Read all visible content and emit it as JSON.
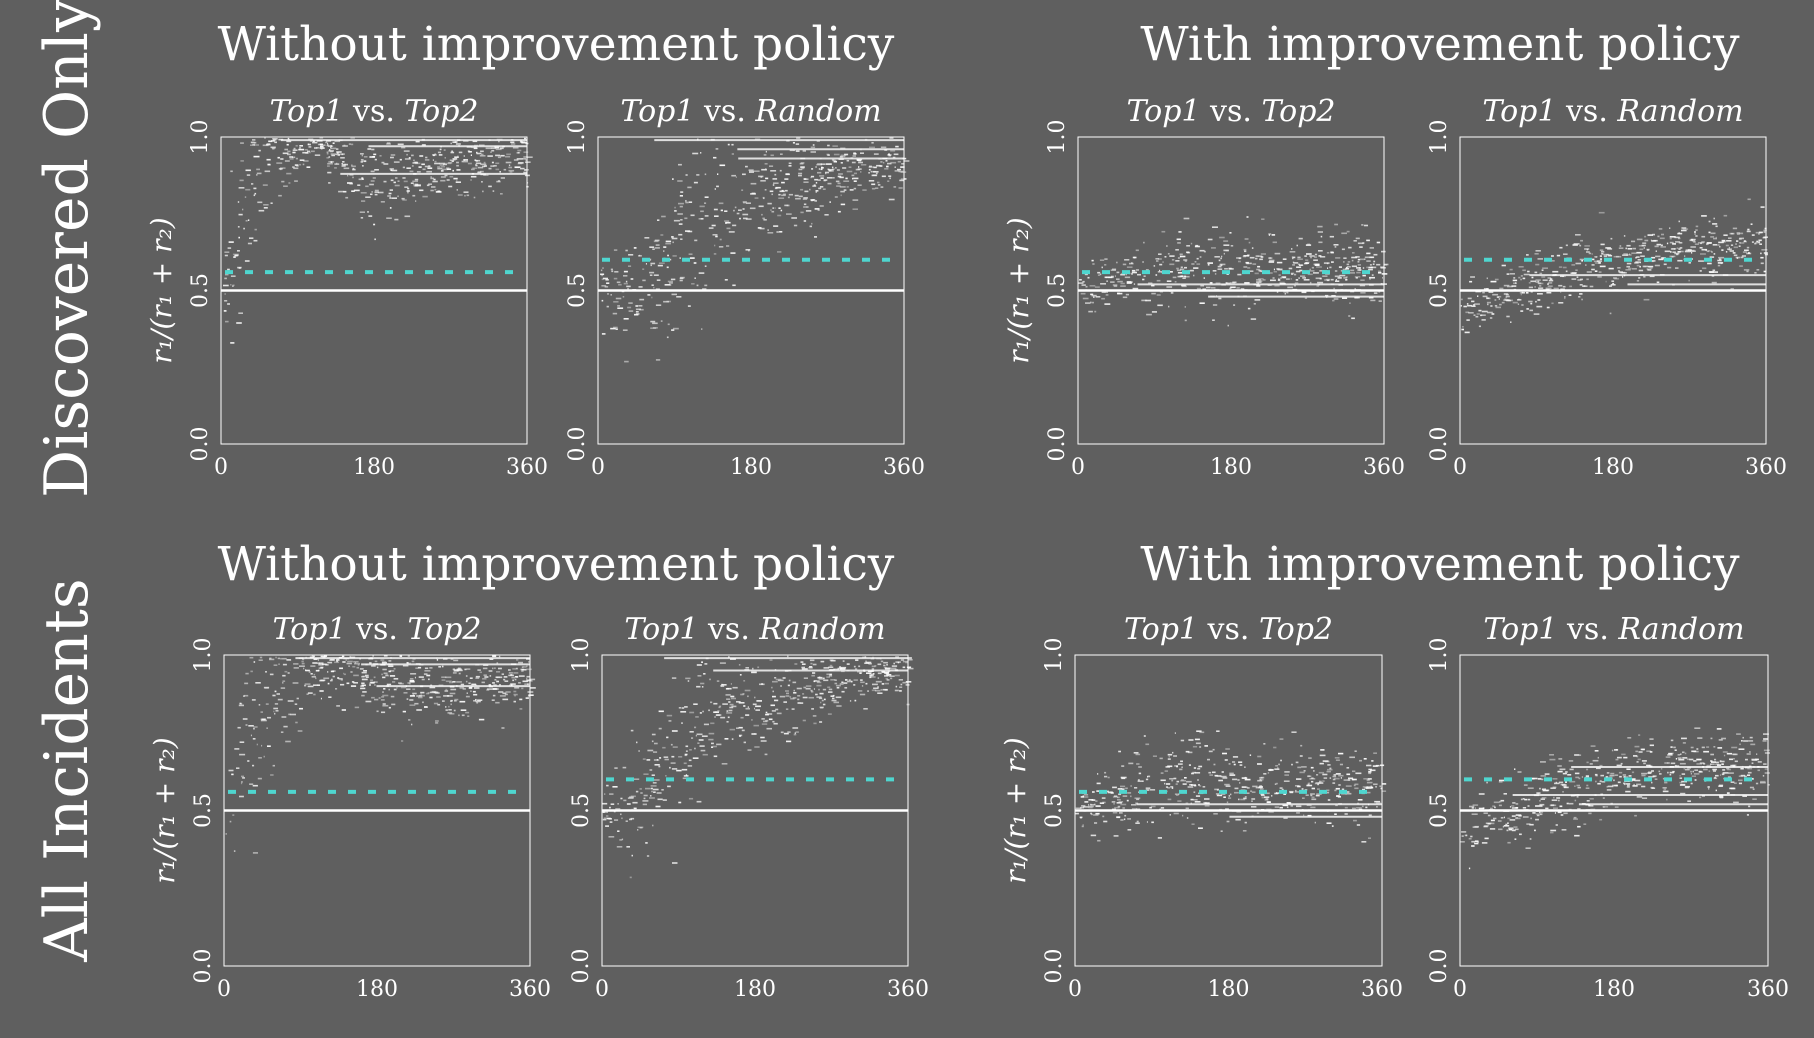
{
  "figure": {
    "rows": [
      {
        "label": "Discovered Only"
      },
      {
        "label": "All Incidents"
      }
    ],
    "group_titles": [
      "Without improvement policy",
      "With improvement policy"
    ],
    "panel_titles": [
      {
        "left": "Top1",
        "vs": " vs. ",
        "right": "Top2"
      },
      {
        "left": "Top1",
        "vs": " vs. ",
        "right": "Random"
      }
    ],
    "ylabel": "r₁/(r₁ + r₂)",
    "x_ticks": [
      "0",
      "180",
      "360"
    ],
    "y_ticks": [
      "0.0",
      "0.5",
      "1.0"
    ]
  },
  "chart_data": [
    {
      "type": "scatter",
      "row": "Discovered Only",
      "group": "Without improvement policy",
      "title": "Top1 vs. Top2",
      "xlim": [
        0,
        360
      ],
      "ylim": [
        0,
        1
      ],
      "xticks": [
        0,
        180,
        360
      ],
      "yticks": [
        0.0,
        0.5,
        1.0
      ],
      "reference_lines": {
        "solid_white_y": 0.5,
        "dashed_cyan_y": 0.56
      },
      "trend": {
        "x": [
          0,
          30,
          60,
          120,
          180,
          240,
          300,
          360
        ],
        "center": [
          0.5,
          0.8,
          0.92,
          0.97,
          0.85,
          0.9,
          0.92,
          0.93
        ],
        "spread": [
          0.12,
          0.25,
          0.12,
          0.05,
          0.12,
          0.1,
          0.08,
          0.07
        ]
      },
      "bands": [
        0.99,
        0.97,
        0.88
      ]
    },
    {
      "type": "scatter",
      "row": "Discovered Only",
      "group": "Without improvement policy",
      "title": "Top1 vs. Random",
      "xlim": [
        0,
        360
      ],
      "ylim": [
        0,
        1
      ],
      "xticks": [
        0,
        180,
        360
      ],
      "yticks": [
        0.0,
        0.5,
        1.0
      ],
      "reference_lines": {
        "solid_white_y": 0.5,
        "dashed_cyan_y": 0.6
      },
      "trend": {
        "x": [
          0,
          30,
          60,
          120,
          180,
          240,
          300,
          360
        ],
        "center": [
          0.5,
          0.5,
          0.55,
          0.72,
          0.8,
          0.85,
          0.9,
          0.92
        ],
        "spread": [
          0.08,
          0.15,
          0.2,
          0.22,
          0.15,
          0.12,
          0.08,
          0.07
        ]
      },
      "bands": [
        0.99,
        0.96,
        0.93
      ]
    },
    {
      "type": "scatter",
      "row": "Discovered Only",
      "group": "With improvement policy",
      "title": "Top1 vs. Top2",
      "xlim": [
        0,
        360
      ],
      "ylim": [
        0,
        1
      ],
      "xticks": [
        0,
        180,
        360
      ],
      "yticks": [
        0.0,
        0.5,
        1.0
      ],
      "reference_lines": {
        "solid_white_y": 0.5,
        "dashed_cyan_y": 0.56
      },
      "trend": {
        "x": [
          0,
          60,
          120,
          180,
          240,
          300,
          360
        ],
        "center": [
          0.49,
          0.54,
          0.58,
          0.57,
          0.57,
          0.57,
          0.56
        ],
        "spread": [
          0.05,
          0.08,
          0.1,
          0.1,
          0.1,
          0.1,
          0.1
        ]
      },
      "bands": [
        0.52,
        0.48
      ]
    },
    {
      "type": "scatter",
      "row": "Discovered Only",
      "group": "With improvement policy",
      "title": "Top1 vs. Random",
      "xlim": [
        0,
        360
      ],
      "ylim": [
        0,
        1
      ],
      "xticks": [
        0,
        180,
        360
      ],
      "yticks": [
        0.0,
        0.5,
        1.0
      ],
      "reference_lines": {
        "solid_white_y": 0.5,
        "dashed_cyan_y": 0.6
      },
      "trend": {
        "x": [
          0,
          60,
          120,
          180,
          240,
          300,
          360
        ],
        "center": [
          0.44,
          0.5,
          0.56,
          0.6,
          0.64,
          0.65,
          0.64
        ],
        "spread": [
          0.07,
          0.08,
          0.09,
          0.09,
          0.08,
          0.08,
          0.08
        ]
      },
      "bands": [
        0.55,
        0.52
      ]
    },
    {
      "type": "scatter",
      "row": "All Incidents",
      "group": "Without improvement policy",
      "title": "Top1 vs. Top2",
      "xlim": [
        0,
        360
      ],
      "ylim": [
        0,
        1
      ],
      "xticks": [
        0,
        180,
        360
      ],
      "yticks": [
        0.0,
        0.5,
        1.0
      ],
      "reference_lines": {
        "solid_white_y": 0.5,
        "dashed_cyan_y": 0.56
      },
      "trend": {
        "x": [
          0,
          30,
          60,
          120,
          180,
          240,
          300,
          360
        ],
        "center": [
          0.5,
          0.75,
          0.9,
          0.95,
          0.93,
          0.88,
          0.9,
          0.92
        ],
        "spread": [
          0.12,
          0.25,
          0.15,
          0.08,
          0.1,
          0.1,
          0.08,
          0.07
        ]
      },
      "bands": [
        0.99,
        0.97,
        0.9
      ]
    },
    {
      "type": "scatter",
      "row": "All Incidents",
      "group": "Without improvement policy",
      "title": "Top1 vs. Random",
      "xlim": [
        0,
        360
      ],
      "ylim": [
        0,
        1
      ],
      "xticks": [
        0,
        180,
        360
      ],
      "yticks": [
        0.0,
        0.5,
        1.0
      ],
      "reference_lines": {
        "solid_white_y": 0.5,
        "dashed_cyan_y": 0.6
      },
      "trend": {
        "x": [
          0,
          30,
          60,
          120,
          180,
          240,
          300,
          360
        ],
        "center": [
          0.5,
          0.5,
          0.62,
          0.82,
          0.86,
          0.9,
          0.93,
          0.95
        ],
        "spread": [
          0.08,
          0.15,
          0.22,
          0.18,
          0.12,
          0.1,
          0.06,
          0.05
        ]
      },
      "bands": [
        0.99,
        0.95
      ]
    },
    {
      "type": "scatter",
      "row": "All Incidents",
      "group": "With improvement policy",
      "title": "Top1 vs. Top2",
      "xlim": [
        0,
        360
      ],
      "ylim": [
        0,
        1
      ],
      "xticks": [
        0,
        180,
        360
      ],
      "yticks": [
        0.0,
        0.5,
        1.0
      ],
      "reference_lines": {
        "solid_white_y": 0.5,
        "dashed_cyan_y": 0.56
      },
      "trend": {
        "x": [
          0,
          60,
          120,
          180,
          240,
          300,
          360
        ],
        "center": [
          0.5,
          0.56,
          0.6,
          0.58,
          0.59,
          0.58,
          0.58
        ],
        "spread": [
          0.05,
          0.1,
          0.11,
          0.11,
          0.1,
          0.1,
          0.1
        ]
      },
      "bands": [
        0.52,
        0.48
      ]
    },
    {
      "type": "scatter",
      "row": "All Incidents",
      "group": "With improvement policy",
      "title": "Top1 vs. Random",
      "xlim": [
        0,
        360
      ],
      "ylim": [
        0,
        1
      ],
      "xticks": [
        0,
        180,
        360
      ],
      "yticks": [
        0.0,
        0.5,
        1.0
      ],
      "reference_lines": {
        "solid_white_y": 0.5,
        "dashed_cyan_y": 0.6
      },
      "trend": {
        "x": [
          0,
          60,
          120,
          180,
          240,
          300,
          360
        ],
        "center": [
          0.45,
          0.5,
          0.57,
          0.62,
          0.64,
          0.64,
          0.65
        ],
        "spread": [
          0.07,
          0.09,
          0.1,
          0.1,
          0.09,
          0.09,
          0.09
        ]
      },
      "bands": [
        0.55,
        0.52,
        0.64
      ]
    }
  ],
  "colors": {
    "background": "#5f5f5f",
    "axis": "#ffffff",
    "points": "#ffffff",
    "dashed_reference": "#4fd6cf"
  }
}
